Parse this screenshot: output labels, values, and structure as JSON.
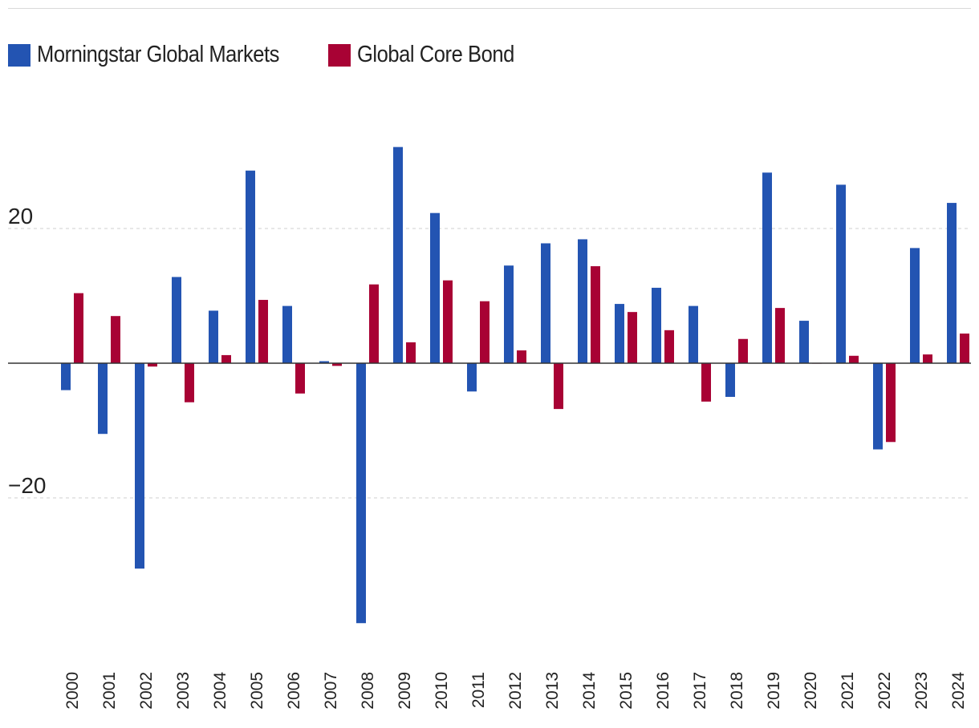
{
  "chart_data": {
    "type": "bar",
    "title": "",
    "xlabel": "",
    "ylabel": "",
    "ylim": [
      -43,
      33
    ],
    "yticks": [
      20,
      -20
    ],
    "ytick_labels": [
      "20",
      "−20"
    ],
    "grid": true,
    "legend_position": "top-left",
    "categories": [
      "2000",
      "2001",
      "2002",
      "2003",
      "2004",
      "2005",
      "2006",
      "2007",
      "2008",
      "2009",
      "2010",
      "2011",
      "2012",
      "2013",
      "2014",
      "2015",
      "2016",
      "2017",
      "2018",
      "2019",
      "2020",
      "2021",
      "2022",
      "2023",
      "2024"
    ],
    "series": [
      {
        "name": "Morningstar Global Markets",
        "color": "#2354b2",
        "values": [
          -4,
          -10.5,
          -30.5,
          12.8,
          7.8,
          28.6,
          8.5,
          0.3,
          -38.6,
          32.1,
          22.3,
          -4.2,
          14.5,
          17.8,
          18.4,
          8.8,
          11.2,
          8.5,
          -5,
          28.3,
          6.3,
          26.5,
          -12.8,
          17.1,
          23.8
        ]
      },
      {
        "name": "Global Core Bond",
        "color": "#a80234",
        "values": [
          10.4,
          7,
          -0.5,
          -5.8,
          1.2,
          9.4,
          -4.5,
          -0.4,
          11.7,
          3.1,
          12.3,
          9.2,
          1.9,
          -6.8,
          14.4,
          7.6,
          4.9,
          -5.7,
          3.6,
          8.2,
          0,
          1.1,
          -11.7,
          1.3,
          4.4
        ]
      }
    ]
  }
}
